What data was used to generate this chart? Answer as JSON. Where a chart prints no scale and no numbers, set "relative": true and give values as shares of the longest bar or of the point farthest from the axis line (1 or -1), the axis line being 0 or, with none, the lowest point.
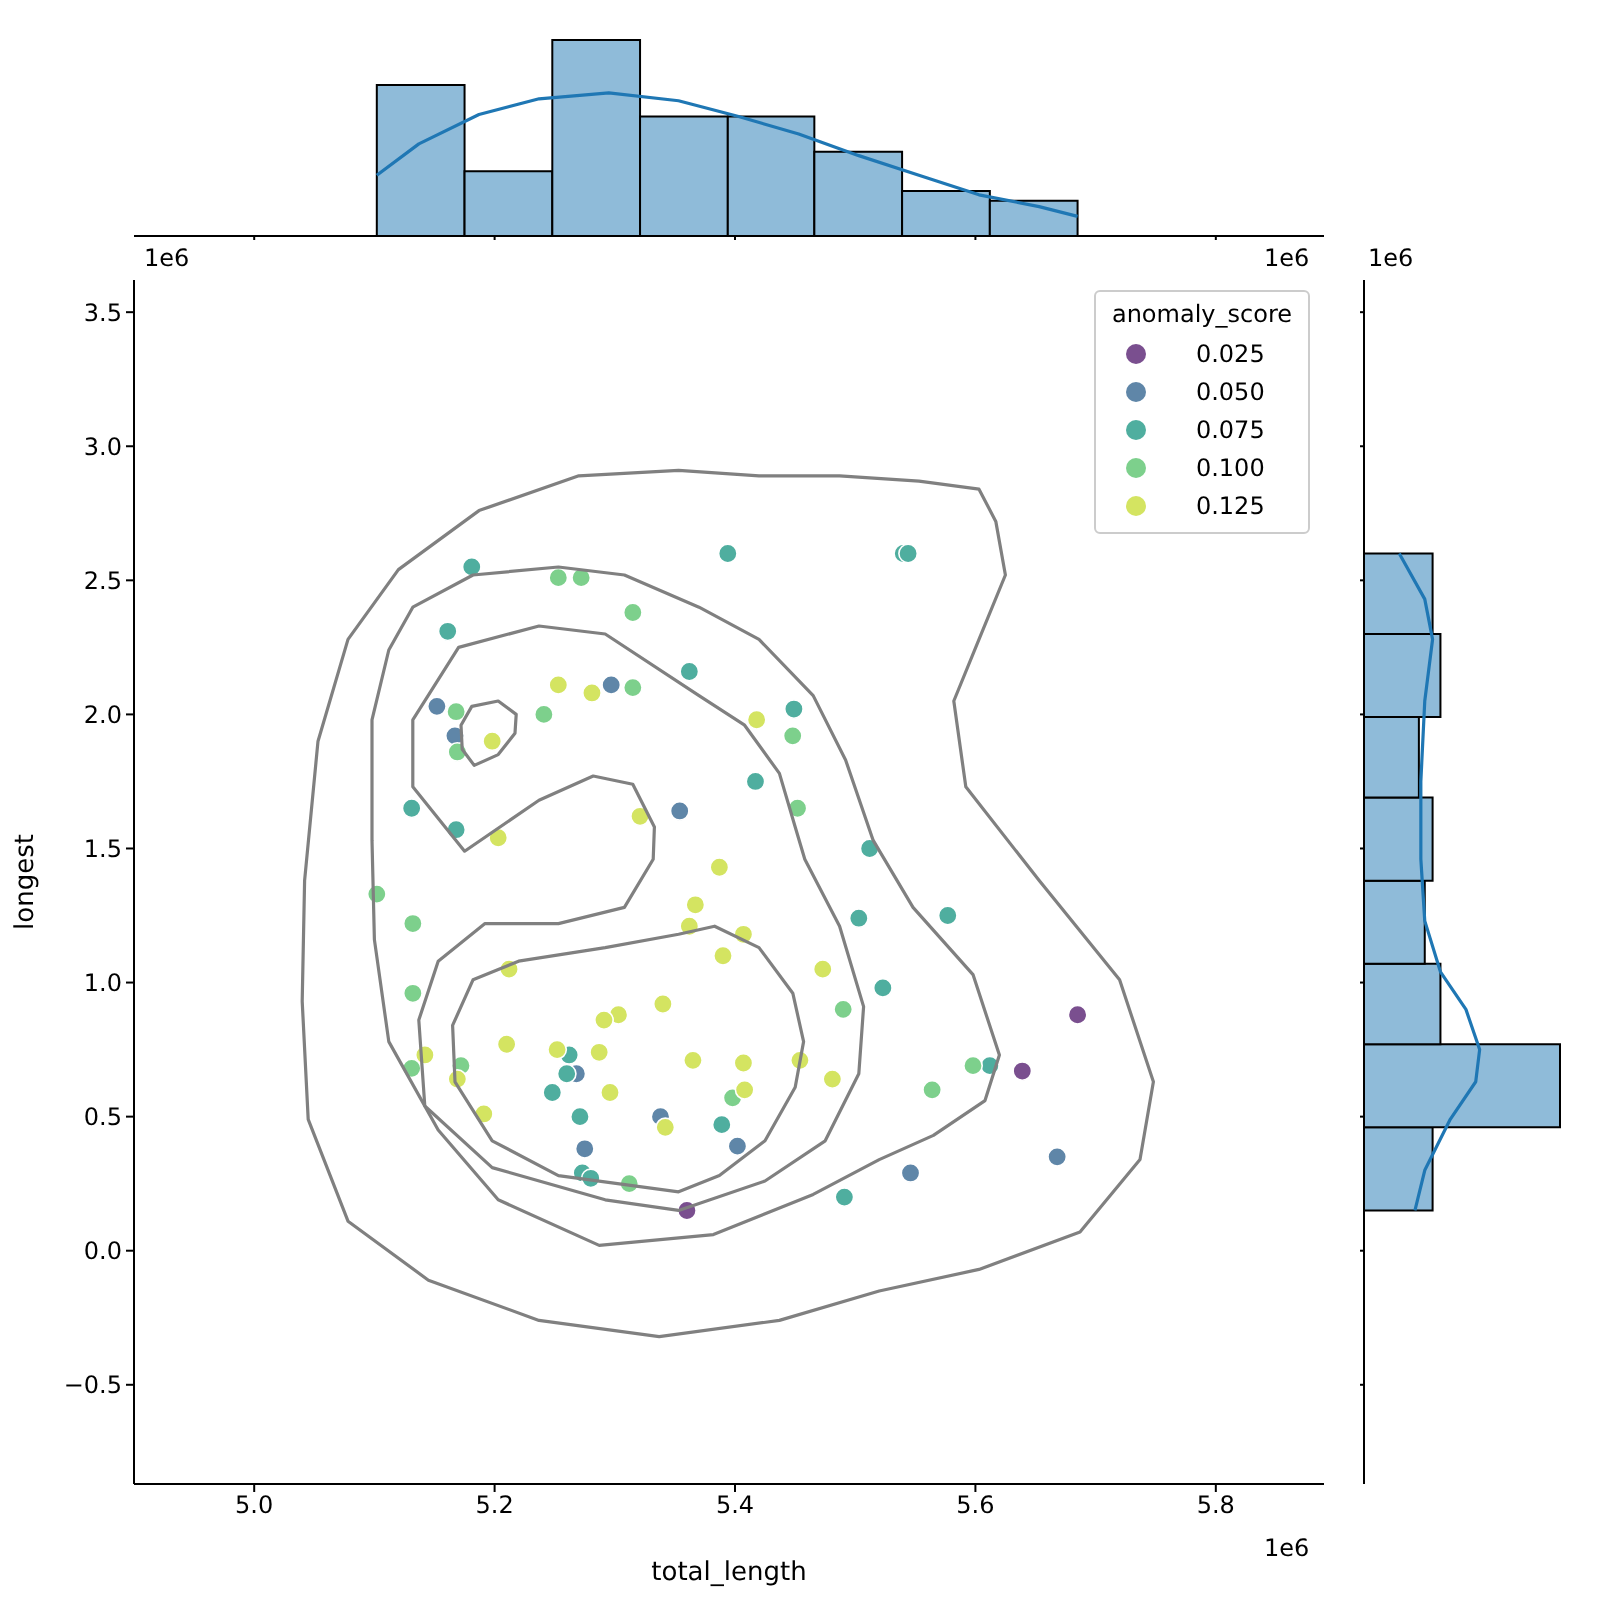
{
  "chart_data": [
    {
      "type": "histogram",
      "relative": true,
      "xlim": [
        4.9,
        5.89
      ],
      "xticks": [
        5,
        5.2,
        5.4,
        5.6,
        5.8
      ],
      "tick_labels": false,
      "annotations": [
        "1e6"
      ],
      "series": [
        {
          "color": "#8fbbd9",
          "bins": [
            5.102,
            5.175,
            5.248,
            5.321,
            5.394,
            5.466,
            5.539,
            5.612,
            5.685
          ],
          "values": [
            0.77,
            0.33,
            1,
            0.61,
            0.61,
            0.43,
            0.23,
            0.18
          ]
        },
        {
          "type": "line",
          "color": "#1f77b4",
          "x": [
            5.102,
            5.137,
            5.187,
            5.237,
            5.295,
            5.353,
            5.403,
            5.453,
            5.503,
            5.553,
            5.603,
            5.653,
            5.685
          ],
          "values": [
            0.31,
            0.47,
            0.62,
            0.7,
            0.73,
            0.69,
            0.61,
            0.52,
            0.41,
            0.31,
            0.21,
            0.15,
            0.1
          ]
        }
      ]
    },
    {
      "type": "scatter",
      "xlabel": "total_length",
      "ylabel": "longest",
      "legend_title": "anomaly_score",
      "legend": "top right",
      "marker": "circle",
      "xlim": [
        4.9,
        5.89
      ],
      "ylim": [
        -0.87,
        3.62
      ],
      "xticks": [
        {
          "value": 5,
          "label": "5.0"
        },
        5.2,
        5.4,
        5.6,
        5.8
      ],
      "yticks": [
        {
          "value": -0.5,
          "label": "−0.5"
        },
        {
          "value": 0,
          "label": "0.0"
        },
        0.5,
        {
          "value": 1,
          "label": "1.0"
        },
        1.5,
        {
          "value": 2,
          "label": "2.0"
        },
        2.5,
        {
          "value": 3,
          "label": "3.0"
        },
        3.5
      ],
      "annotations": [
        "1e6",
        "1e6"
      ],
      "series": [
        {
          "name": "0.025",
          "color": "#7a4f8f",
          "x": [
            5.36,
            5.639,
            5.685
          ],
          "values": [
            0.15,
            0.67,
            0.88
          ]
        },
        {
          "name": "0.050",
          "color": "#5f86a8",
          "x": [
            5.297,
            5.152,
            5.167,
            5.354,
            5.268,
            5.338,
            5.275,
            5.402,
            5.546,
            5.668
          ],
          "values": [
            2.11,
            2.03,
            1.92,
            1.64,
            0.66,
            0.5,
            0.38,
            0.39,
            0.29,
            0.35
          ]
        },
        {
          "name": "0.075",
          "color": "#4fae9f",
          "x": [
            5.181,
            5.161,
            5.362,
            5.131,
            5.168,
            5.394,
            5.54,
            5.544,
            5.449,
            5.417,
            5.512,
            5.262,
            5.26,
            5.248,
            5.271,
            5.273,
            5.28,
            5.503,
            5.577,
            5.523,
            5.612,
            5.389,
            5.491
          ],
          "values": [
            2.55,
            2.31,
            2.16,
            1.65,
            1.57,
            2.6,
            2.6,
            2.6,
            2.02,
            1.75,
            1.5,
            0.73,
            0.66,
            0.59,
            0.5,
            0.29,
            0.27,
            1.24,
            1.25,
            0.98,
            0.69,
            0.47,
            0.2
          ]
        },
        {
          "name": "0.100",
          "color": "#7dd08c",
          "x": [
            5.253,
            5.272,
            5.315,
            5.315,
            5.168,
            5.241,
            5.169,
            5.448,
            5.452,
            5.102,
            5.132,
            5.132,
            5.131,
            5.172,
            5.312,
            5.49,
            5.598,
            5.564,
            5.398
          ],
          "values": [
            2.51,
            2.51,
            2.38,
            2.1,
            2.01,
            2.0,
            1.86,
            1.92,
            1.65,
            1.33,
            1.22,
            0.96,
            0.68,
            0.69,
            0.25,
            0.9,
            0.69,
            0.6,
            0.57
          ]
        },
        {
          "name": "0.125",
          "color": "#d4e461",
          "x": [
            5.253,
            5.281,
            5.198,
            5.321,
            5.203,
            5.418,
            5.387,
            5.367,
            5.362,
            5.212,
            5.34,
            5.303,
            5.291,
            5.21,
            5.142,
            5.169,
            5.252,
            5.287,
            5.296,
            5.191,
            5.342,
            5.365,
            5.407,
            5.39,
            5.473,
            5.407,
            5.454,
            5.481,
            5.408
          ],
          "values": [
            2.11,
            2.08,
            1.9,
            1.62,
            1.54,
            1.98,
            1.43,
            1.29,
            1.21,
            1.05,
            0.92,
            0.88,
            0.86,
            0.77,
            0.73,
            0.64,
            0.75,
            0.74,
            0.59,
            0.51,
            0.46,
            0.71,
            1.18,
            1.1,
            1.05,
            0.7,
            0.71,
            0.64,
            0.6
          ]
        }
      ]
    },
    {
      "type": "histogram",
      "relative": true,
      "orientation": "horizontal",
      "ylim": [
        -0.87,
        3.62
      ],
      "yticks": [
        -0.5,
        0,
        0.5,
        1,
        1.5,
        2,
        2.5,
        3,
        3.5
      ],
      "tick_labels": false,
      "annotations": [
        "1e6"
      ],
      "series": [
        {
          "color": "#8fbbd9",
          "bins": [
            0.15,
            0.46,
            0.77,
            1.07,
            1.38,
            1.69,
            1.99,
            2.3,
            2.6
          ],
          "values": [
            0.35,
            1,
            0.39,
            0.31,
            0.35,
            0.28,
            0.39,
            0.35
          ]
        },
        {
          "type": "line",
          "color": "#1f77b4",
          "x": [
            0.15,
            0.3,
            0.49,
            0.63,
            0.75,
            0.9,
            1.04,
            1.23,
            1.46,
            1.75,
            2.05,
            2.28,
            2.43,
            2.6
          ],
          "values": [
            0.26,
            0.31,
            0.44,
            0.57,
            0.59,
            0.52,
            0.39,
            0.31,
            0.29,
            0.29,
            0.31,
            0.35,
            0.31,
            0.18
          ]
        }
      ]
    }
  ]
}
